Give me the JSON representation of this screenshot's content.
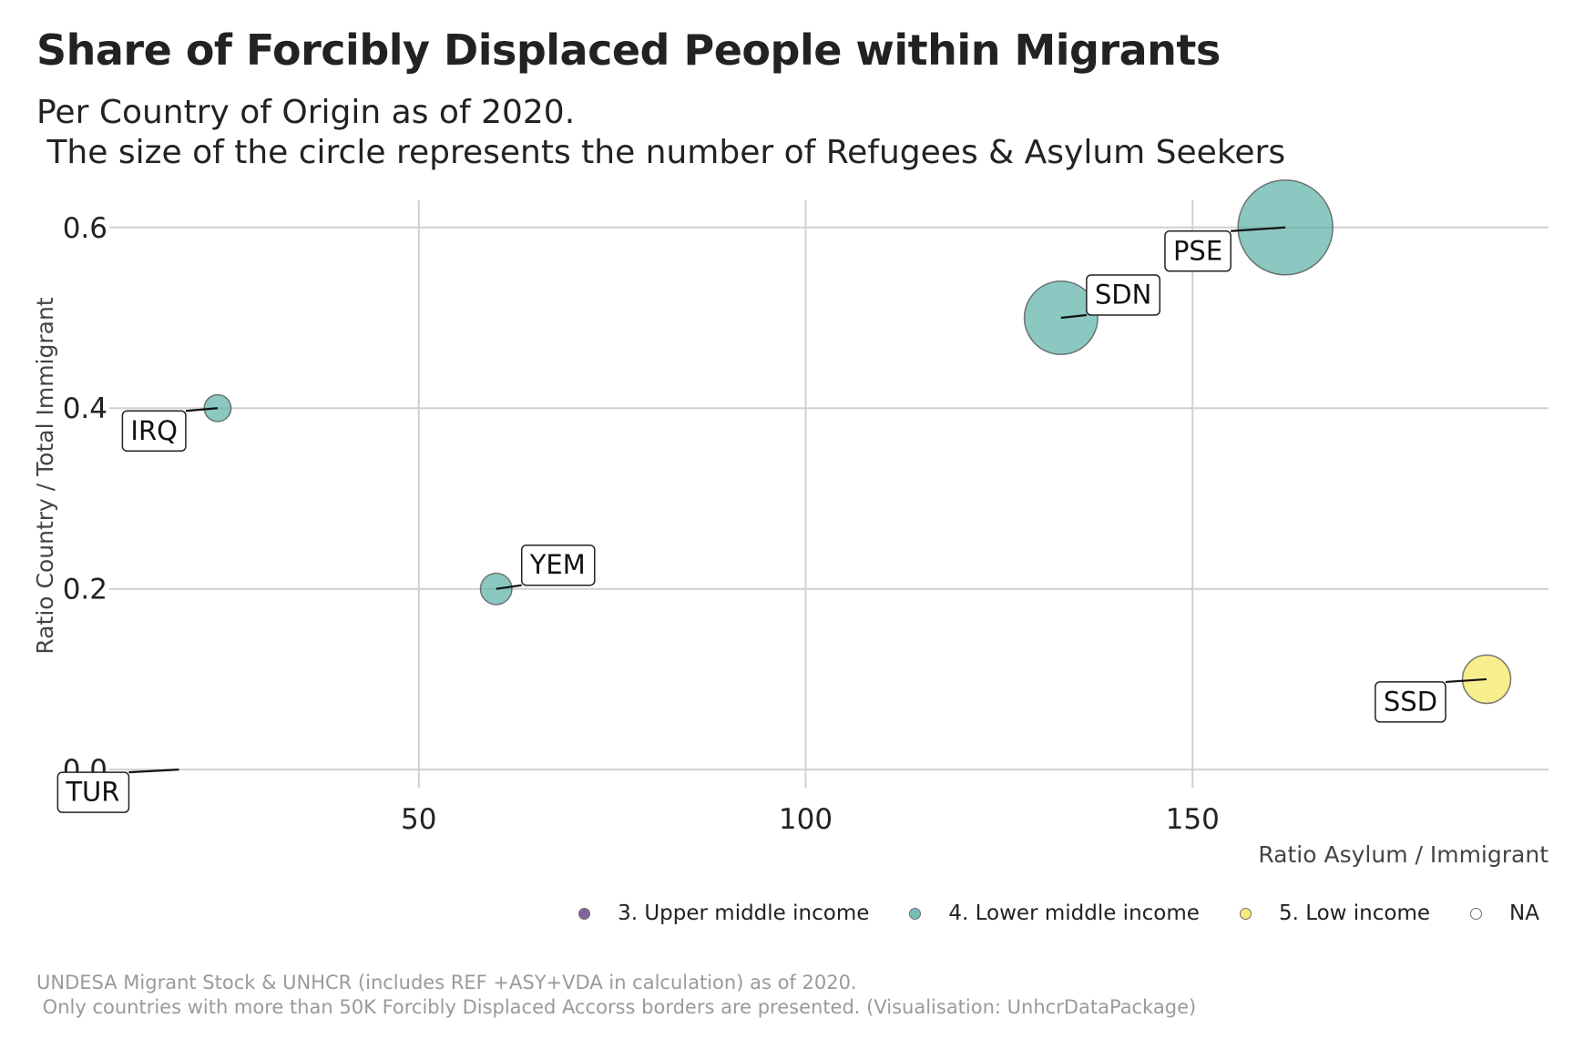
{
  "title": "Share of Forcibly Displaced People within Migrants",
  "subtitle": "Per Country of Origin as of 2020.\n The size of the circle represents the number of Refugees & Asylum Seekers",
  "caption": "UNDESA Migrant Stock & UNHCR (includes REF +ASY+VDA in calculation) as of 2020.\n Only countries with more than 50K Forcibly Displaced Accorss borders are presented. (Visualisation: UnhcrDataPackage)",
  "chart_data": {
    "type": "scatter",
    "xlabel": "Ratio Asylum / Immigrant",
    "ylabel": "Ratio Country / Total Immigrant",
    "xlim": [
      10,
      196
    ],
    "ylim": [
      -0.02,
      0.63
    ],
    "x_ticks": [
      50,
      100,
      150
    ],
    "y_ticks": [
      0.0,
      0.2,
      0.4,
      0.6
    ],
    "grid": true,
    "legend_position": "bottom-right",
    "legend": [
      {
        "label": "3. Upper middle income",
        "color": "#6b4c8a"
      },
      {
        "label": "4. Lower middle income",
        "color": "#5fb3ab"
      },
      {
        "label": "5. Low income",
        "color": "#f4e863"
      },
      {
        "label": "NA",
        "color": "#ffffff"
      }
    ],
    "points": [
      {
        "label": "PSE",
        "x": 162,
        "y": 0.6,
        "size": 100,
        "group": "4. Lower middle income",
        "color": "#5fb3ab"
      },
      {
        "label": "SDN",
        "x": 133,
        "y": 0.5,
        "size": 60,
        "group": "4. Lower middle income",
        "color": "#5fb3ab"
      },
      {
        "label": "IRQ",
        "x": 24,
        "y": 0.4,
        "size": 8,
        "group": "4. Lower middle income",
        "color": "#5fb3ab"
      },
      {
        "label": "YEM",
        "x": 60,
        "y": 0.2,
        "size": 11,
        "group": "4. Lower middle income",
        "color": "#5fb3ab"
      },
      {
        "label": "SSD",
        "x": 188,
        "y": 0.1,
        "size": 26,
        "group": "5. Low income",
        "color": "#f4e863"
      },
      {
        "label": "TUR",
        "x": 19,
        "y": 0.0,
        "size": 0,
        "group": "3. Upper middle income",
        "color": "#6b4c8a"
      }
    ]
  }
}
